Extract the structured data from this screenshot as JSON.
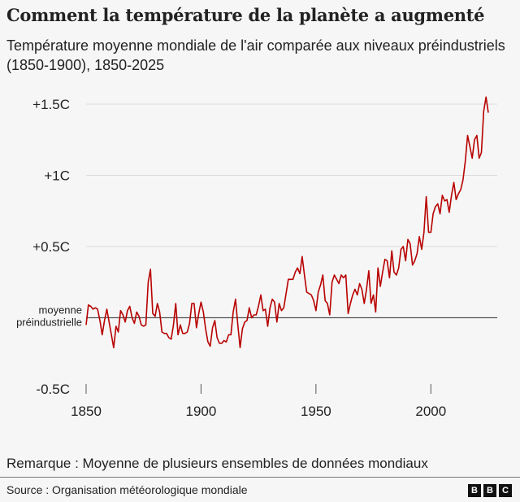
{
  "chart_data": {
    "type": "line",
    "title": "Comment la température de la planète a augmenté",
    "subtitle": "Température moyenne mondiale de l'air comparée aux niveaux préindustriels (1850-1900), 1850-2025",
    "xlabel": "",
    "ylabel": "",
    "xlim": [
      1850,
      2025
    ],
    "ylim": [
      -0.5,
      1.5
    ],
    "x_ticks": [
      1850,
      1900,
      1950,
      2000
    ],
    "x_tick_labels": [
      "1850",
      "1900",
      "1950",
      "2000"
    ],
    "y_ticks": [
      -0.5,
      0,
      0.5,
      1,
      1.5
    ],
    "y_tick_labels": [
      "-0.5C",
      "moyenne préindustrielle",
      "+0.5C",
      "+1C",
      "+1.5C"
    ],
    "baseline_label": [
      "moyenne",
      "préindustrielle"
    ],
    "grid": true,
    "line_color": "#b80000",
    "series": [
      {
        "name": "Température moyenne mondiale",
        "x_start": 1850,
        "values": [
          -0.05,
          0.09,
          0.08,
          0.06,
          0.07,
          0.06,
          -0.02,
          -0.12,
          -0.02,
          0.06,
          -0.03,
          -0.12,
          -0.21,
          -0.06,
          -0.1,
          0.05,
          0.02,
          -0.03,
          0.05,
          0.08,
          0.0,
          -0.04,
          0.04,
          0.01,
          -0.05,
          -0.06,
          -0.05,
          0.25,
          0.34,
          0.03,
          0.01,
          0.1,
          0.04,
          -0.1,
          -0.11,
          -0.11,
          -0.14,
          -0.15,
          -0.05,
          0.1,
          -0.12,
          -0.05,
          -0.11,
          -0.11,
          -0.1,
          -0.04,
          0.1,
          0.1,
          -0.07,
          0.03,
          0.11,
          0.04,
          -0.08,
          -0.17,
          -0.2,
          -0.07,
          -0.02,
          -0.14,
          -0.18,
          -0.18,
          -0.16,
          -0.17,
          -0.12,
          -0.12,
          0.04,
          0.13,
          -0.05,
          -0.21,
          -0.08,
          -0.03,
          -0.02,
          0.07,
          0.0,
          0.02,
          0.02,
          0.08,
          0.16,
          0.05,
          0.06,
          -0.06,
          0.07,
          0.13,
          0.11,
          -0.03,
          0.1,
          0.05,
          0.07,
          0.17,
          0.27,
          0.27,
          0.27,
          0.32,
          0.35,
          0.31,
          0.43,
          0.3,
          0.18,
          0.17,
          0.16,
          0.12,
          0.05,
          0.18,
          0.23,
          0.3,
          0.12,
          0.1,
          0.02,
          0.25,
          0.3,
          0.27,
          0.24,
          0.3,
          0.28,
          0.3,
          0.03,
          0.1,
          0.16,
          0.2,
          0.16,
          0.24,
          0.2,
          0.1,
          0.2,
          0.33,
          0.1,
          0.16,
          0.04,
          0.35,
          0.22,
          0.32,
          0.41,
          0.4,
          0.28,
          0.47,
          0.32,
          0.3,
          0.35,
          0.48,
          0.5,
          0.4,
          0.55,
          0.52,
          0.37,
          0.4,
          0.45,
          0.57,
          0.48,
          0.6,
          0.85,
          0.6,
          0.6,
          0.73,
          0.78,
          0.8,
          0.73,
          0.86,
          0.82,
          0.83,
          0.74,
          0.86,
          0.95,
          0.83,
          0.87,
          0.9,
          0.97,
          1.1,
          1.28,
          1.2,
          1.12,
          1.25,
          1.28,
          1.12,
          1.16,
          1.45,
          1.55,
          1.44
        ]
      }
    ]
  },
  "note": "Remarque : Moyenne de plusieurs ensembles de données mondiaux",
  "source": "Source : Organisation météorologique mondiale",
  "logo": [
    "B",
    "B",
    "C"
  ]
}
